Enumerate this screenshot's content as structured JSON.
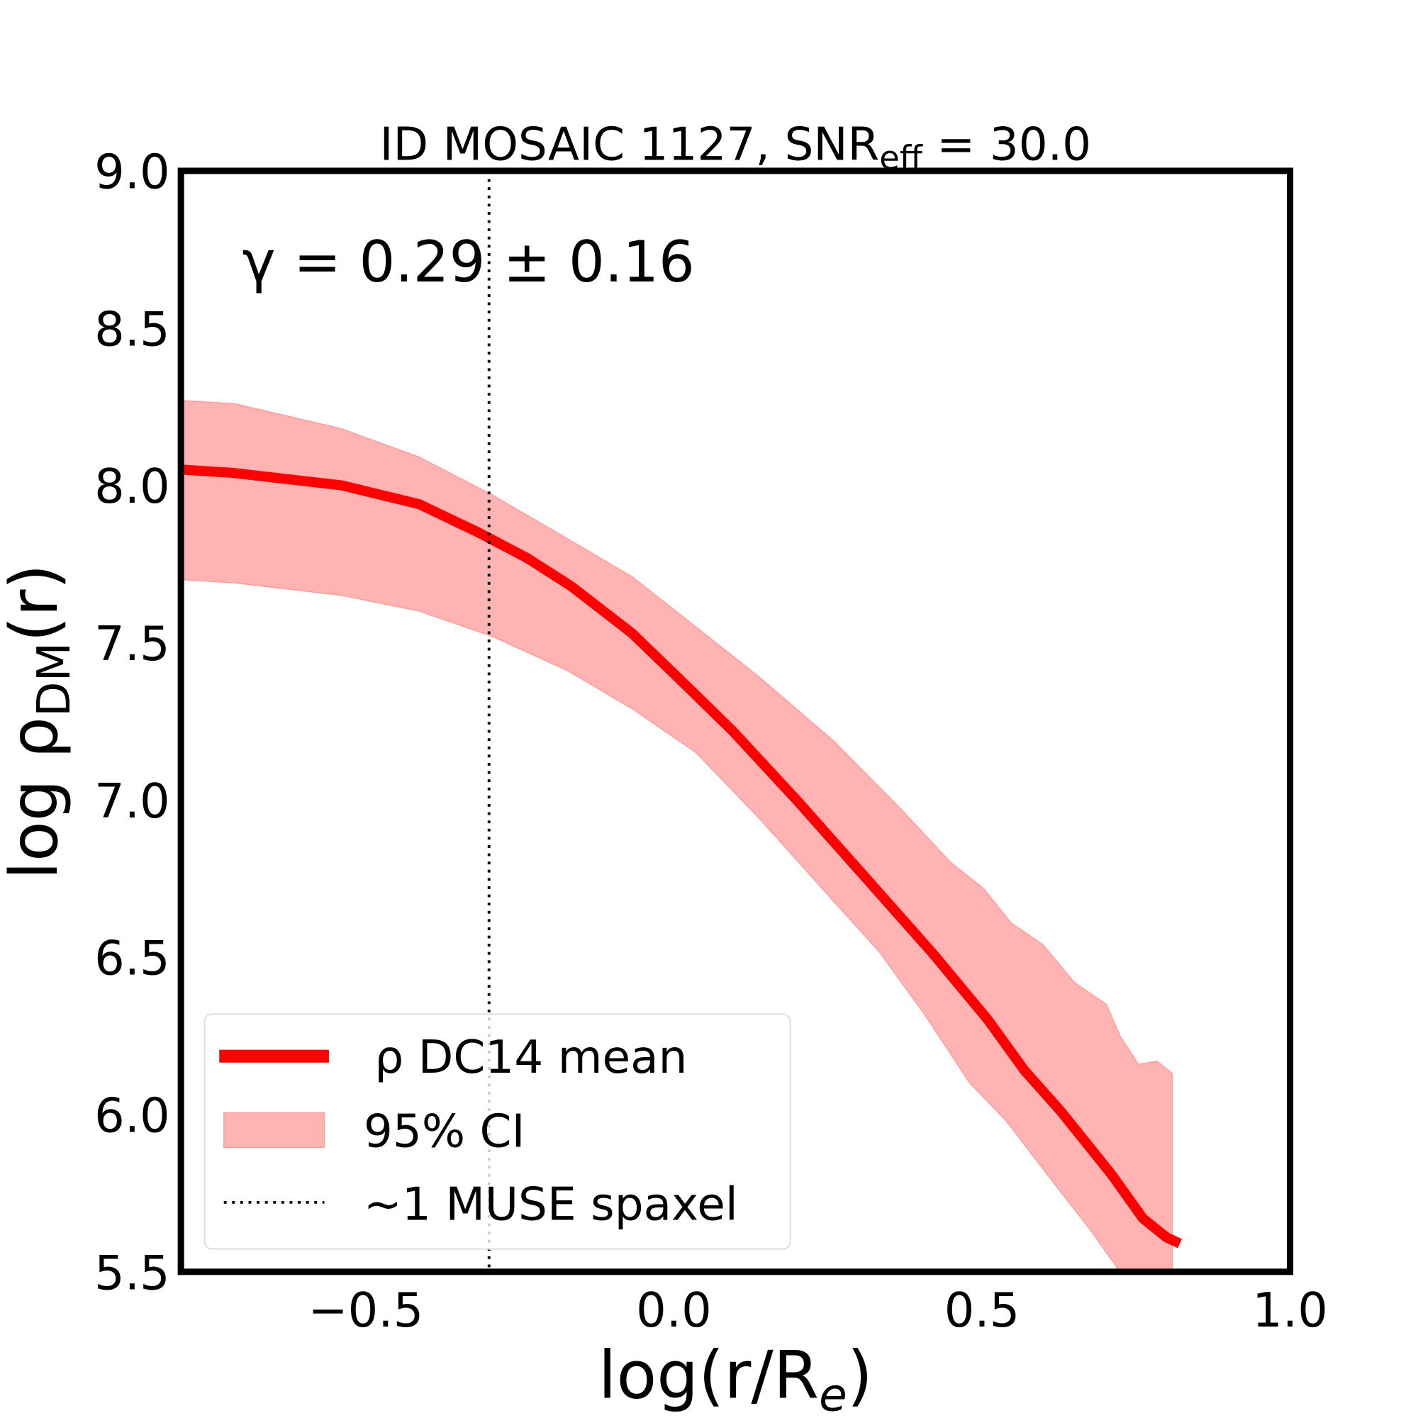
{
  "chart_data": {
    "type": "line",
    "title": "ID MOSAIC 1127, SNR",
    "title_sub": "eff",
    "title_suffix": " = 30.0",
    "xlabel": "log(r/R",
    "xlabel_sub": "e",
    "xlabel_suffix": ")",
    "ylabel": "log ρ",
    "ylabel_sub": "DM",
    "ylabel_suffix": "(r)",
    "xlim": [
      -0.8,
      1.0
    ],
    "ylim": [
      5.5,
      9.0
    ],
    "xticks": [
      "−0.5",
      "0.0",
      "0.5",
      "1.0"
    ],
    "xtick_values": [
      -0.5,
      0.0,
      0.5,
      1.0
    ],
    "yticks": [
      "5.5",
      "6.0",
      "6.5",
      "7.0",
      "7.5",
      "8.0",
      "8.5",
      "9.0"
    ],
    "ytick_values": [
      5.5,
      6.0,
      6.5,
      7.0,
      7.5,
      8.0,
      8.5,
      9.0
    ],
    "grid": false,
    "annotation": "γ = 0.29 ± 0.16",
    "vline": {
      "x": -0.3,
      "style": "dotted",
      "color": "#000000"
    },
    "series": [
      {
        "name": "ρ DC14 mean",
        "color": "#ff0000",
        "x": [
          -0.797,
          -0.716,
          -0.539,
          -0.413,
          -0.317,
          -0.239,
          -0.167,
          -0.068,
          0.006,
          0.095,
          0.199,
          0.317,
          0.421,
          0.51,
          0.569,
          0.628,
          0.71,
          0.761,
          0.799,
          0.821
        ],
        "y": [
          8.05,
          8.04,
          8.0,
          7.94,
          7.85,
          7.77,
          7.68,
          7.53,
          7.39,
          7.22,
          7.0,
          6.74,
          6.51,
          6.3,
          6.14,
          6.01,
          5.81,
          5.67,
          5.61,
          5.59
        ]
      }
    ],
    "band": {
      "name": "95% CI",
      "color": "#ffb3b3",
      "x_upper": [
        -0.797,
        -0.713,
        -0.539,
        -0.413,
        -0.295,
        -0.172,
        -0.068,
        0.036,
        0.139,
        0.258,
        0.369,
        0.45,
        0.502,
        0.547,
        0.599,
        0.65,
        0.702,
        0.724,
        0.754,
        0.784,
        0.809
      ],
      "y_upper": [
        8.27,
        8.26,
        8.18,
        8.09,
        7.97,
        7.83,
        7.71,
        7.55,
        7.39,
        7.19,
        6.97,
        6.8,
        6.72,
        6.61,
        6.54,
        6.42,
        6.35,
        6.25,
        6.16,
        6.17,
        6.13
      ],
      "x_lower": [
        -0.797,
        -0.713,
        -0.539,
        -0.413,
        -0.295,
        -0.172,
        -0.068,
        0.036,
        0.139,
        0.258,
        0.332,
        0.406,
        0.48,
        0.539,
        0.621,
        0.673,
        0.724,
        0.809
      ],
      "y_lower": [
        7.7,
        7.69,
        7.65,
        7.6,
        7.52,
        7.41,
        7.29,
        7.15,
        6.94,
        6.68,
        6.52,
        6.32,
        6.1,
        5.98,
        5.77,
        5.64,
        5.5,
        5.3
      ]
    },
    "legend": {
      "placement": "lower-left",
      "entries": [
        "ρ DC14 mean",
        "95% CI",
        "~1 MUSE spaxel"
      ]
    }
  }
}
